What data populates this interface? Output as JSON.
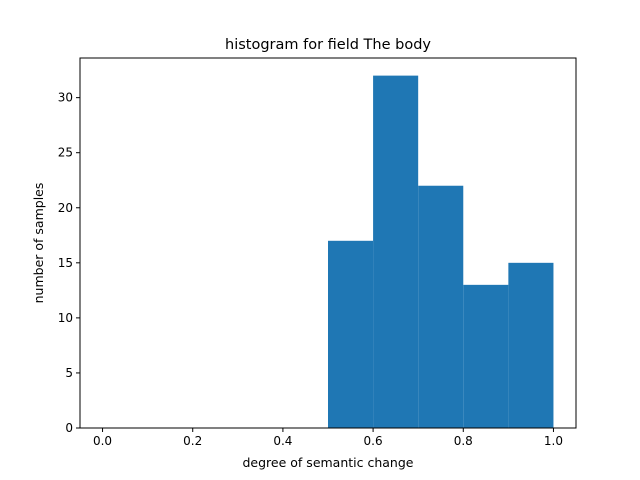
{
  "chart_data": {
    "type": "bar",
    "title": "histogram for field The body",
    "xlabel": "degree of semantic change",
    "ylabel": "number of samples",
    "bins": [
      {
        "start": 0.5,
        "end": 0.6,
        "count": 17
      },
      {
        "start": 0.6,
        "end": 0.7,
        "count": 32
      },
      {
        "start": 0.7,
        "end": 0.8,
        "count": 22
      },
      {
        "start": 0.8,
        "end": 0.9,
        "count": 13
      },
      {
        "start": 0.9,
        "end": 1.0,
        "count": 15
      }
    ],
    "xlim": [
      -0.05,
      1.05
    ],
    "ylim": [
      0,
      33.6
    ],
    "xticks": [
      "0.0",
      "0.2",
      "0.4",
      "0.6",
      "0.8",
      "1.0"
    ],
    "yticks": [
      "0",
      "5",
      "10",
      "15",
      "20",
      "25",
      "30"
    ],
    "grid": false,
    "colors": {
      "bar": "#1f77b4",
      "axes": "#000000"
    }
  }
}
